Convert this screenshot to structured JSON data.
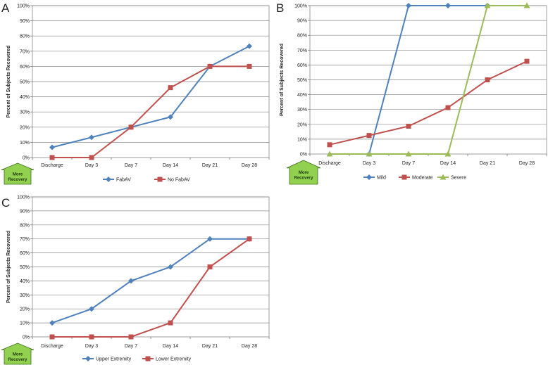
{
  "chart_data": [
    {
      "id": "A",
      "panel_label": "A",
      "type": "line",
      "ylabel": "Percent of Subjects Recovered",
      "ylim": [
        0,
        100
      ],
      "yticks": [
        "0%",
        "10%",
        "20%",
        "30%",
        "40%",
        "50%",
        "60%",
        "70%",
        "80%",
        "90%",
        "100%"
      ],
      "grid": true,
      "categories": [
        "Discharge",
        "Day 3",
        "Day 7",
        "Day 14",
        "Day 21",
        "Day 28"
      ],
      "arrow_label": "More\nRecovery",
      "legend_position": "bottom",
      "series": [
        {
          "name": "FabAV",
          "color": "#4f81bd",
          "marker": "diamond",
          "values": [
            6.7,
            13.3,
            20,
            26.7,
            60,
            73.3
          ]
        },
        {
          "name": "No FabAV",
          "color": "#c0504d",
          "marker": "square",
          "values": [
            0,
            0,
            20,
            46,
            60,
            60
          ]
        }
      ]
    },
    {
      "id": "B",
      "panel_label": "B",
      "type": "line",
      "ylabel": "Percent of Subjects Recovered",
      "ylim": [
        0,
        100
      ],
      "yticks": [
        "0%",
        "10%",
        "20%",
        "30%",
        "40%",
        "50%",
        "60%",
        "70%",
        "80%",
        "90%",
        "100%"
      ],
      "grid": true,
      "categories": [
        "Discharge",
        "Day 3",
        "Day 7",
        "Day 14",
        "Day 21",
        "Day 28"
      ],
      "arrow_label": "More\nRecovery",
      "legend_position": "bottom",
      "series": [
        {
          "name": "Mild",
          "color": "#4f81bd",
          "marker": "diamond",
          "values": [
            null,
            0,
            100,
            100,
            100,
            null
          ]
        },
        {
          "name": "Moderate",
          "color": "#c0504d",
          "marker": "square",
          "values": [
            6.25,
            12.5,
            18.75,
            31.25,
            50,
            62.5
          ]
        },
        {
          "name": "Severe",
          "color": "#9bbb59",
          "marker": "triangle",
          "values": [
            0,
            0,
            0,
            0,
            100,
            100
          ]
        }
      ]
    },
    {
      "id": "C",
      "panel_label": "C",
      "type": "line",
      "ylabel": "Percent of Subjects Recovered",
      "ylim": [
        0,
        100
      ],
      "yticks": [
        "0%",
        "10%",
        "20%",
        "30%",
        "40%",
        "50%",
        "60%",
        "70%",
        "80%",
        "90%",
        "100%"
      ],
      "grid": true,
      "categories": [
        "Discharge",
        "Day 3",
        "Day 7",
        "Day 14",
        "Day 21",
        "Day 28"
      ],
      "arrow_label": "More\nRecovery",
      "legend_position": "bottom",
      "series": [
        {
          "name": "Upper Extremity",
          "color": "#4f81bd",
          "marker": "diamond",
          "values": [
            10,
            20,
            40,
            50,
            70,
            70
          ]
        },
        {
          "name": "Lower Extremity",
          "color": "#c0504d",
          "marker": "square",
          "values": [
            0,
            0,
            0,
            10,
            50,
            70
          ]
        }
      ]
    }
  ]
}
